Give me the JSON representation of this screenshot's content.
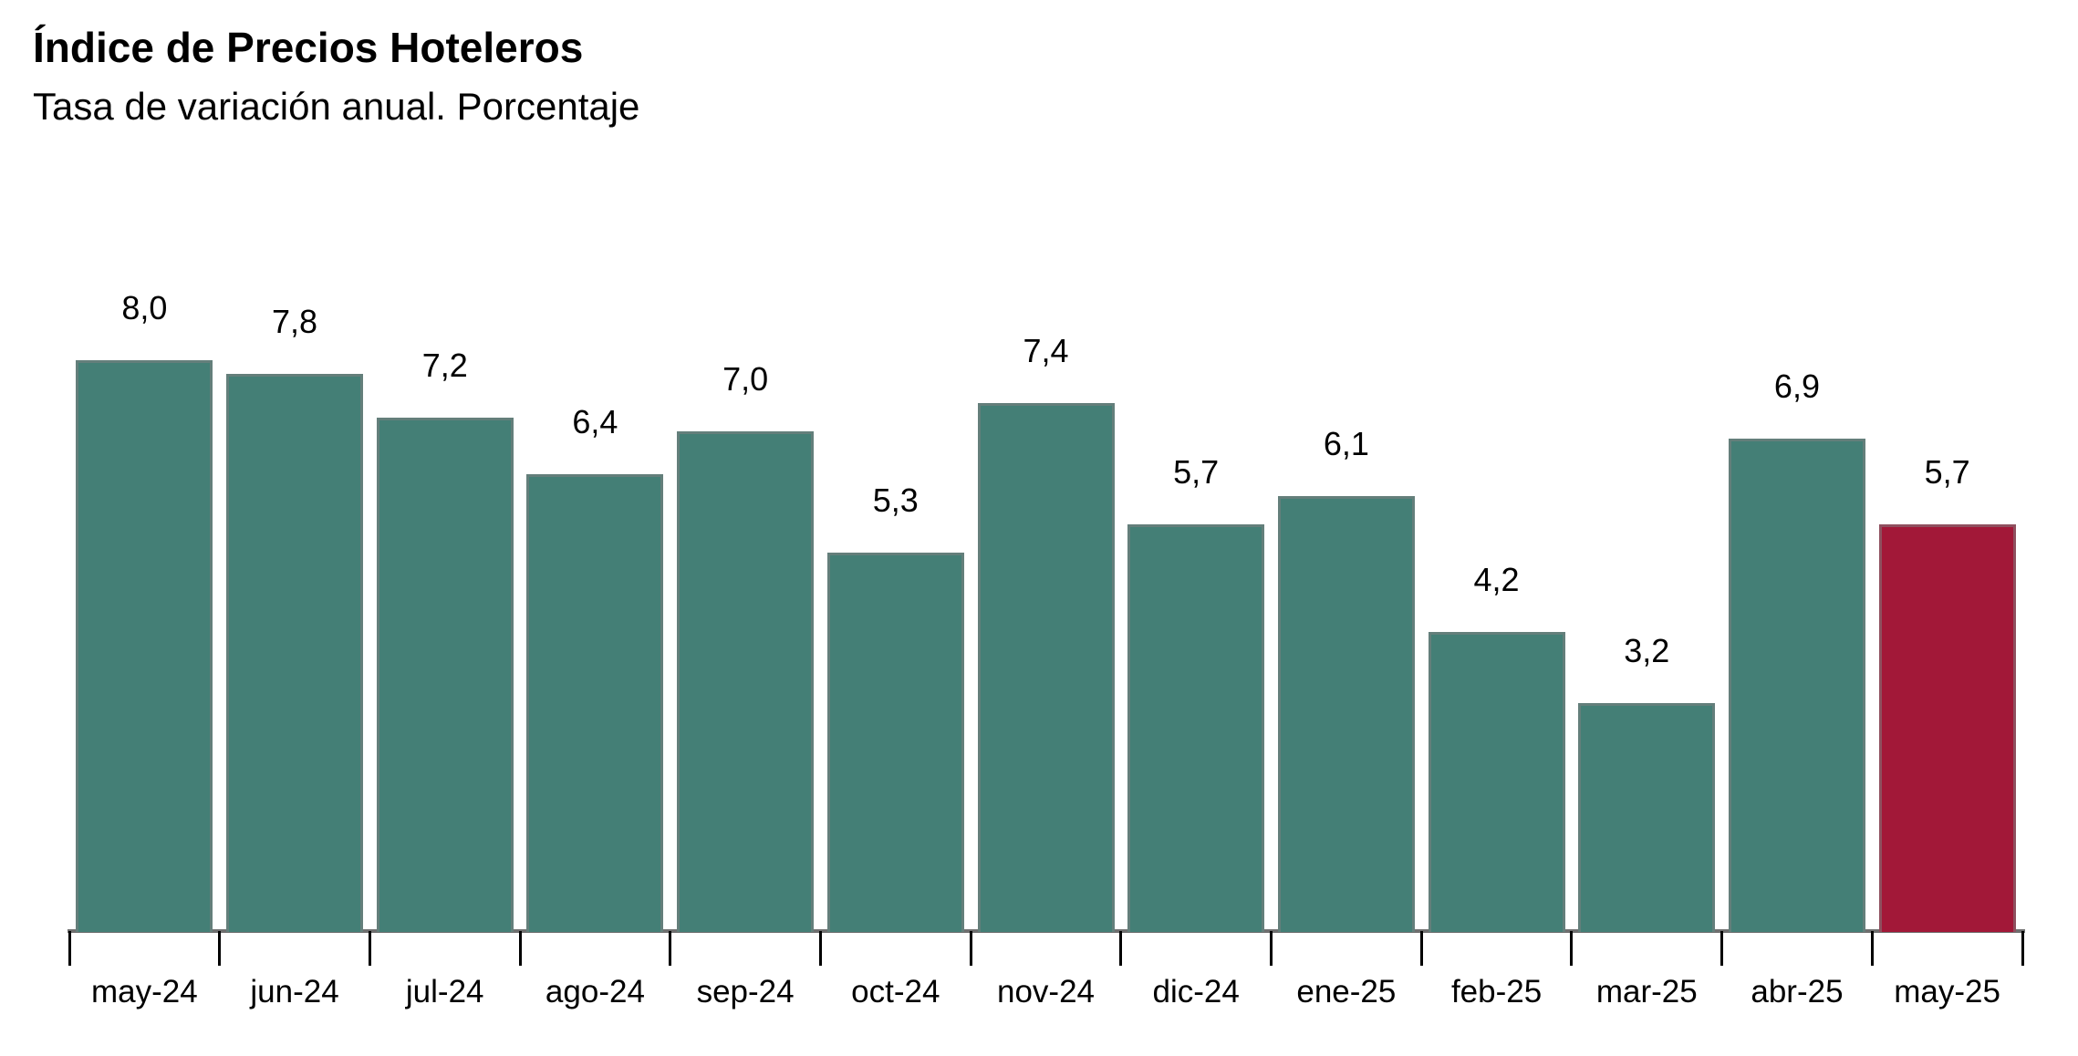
{
  "chart_data": {
    "type": "bar",
    "title": "Índice de Precios Hoteleros",
    "subtitle": "Tasa de variación anual. Porcentaje",
    "categories": [
      "may-24",
      "jun-24",
      "jul-24",
      "ago-24",
      "sep-24",
      "oct-24",
      "nov-24",
      "dic-24",
      "ene-25",
      "feb-25",
      "mar-25",
      "abr-25",
      "may-25"
    ],
    "values": [
      8.0,
      7.8,
      7.2,
      6.4,
      7.0,
      5.3,
      7.4,
      5.7,
      6.1,
      4.2,
      3.2,
      6.9,
      5.7
    ],
    "value_labels": [
      "8,0",
      "7,8",
      "7,2",
      "6,4",
      "7,0",
      "5,3",
      "7,4",
      "5,7",
      "6,1",
      "4,2",
      "3,2",
      "6,9",
      "5,7"
    ],
    "xlabel": "",
    "ylabel": "",
    "ylim": [
      0,
      8.5
    ],
    "grid": false,
    "legend": "none",
    "decimal_separator": ",",
    "highlight_index": 12,
    "colors": {
      "bar": "#447f76",
      "highlight": "#a21838",
      "bar_border": "#9b9b9b",
      "axis_line": "#6f6f6f",
      "tick": "#000000",
      "text": "#000000",
      "background": "#ffffff"
    }
  }
}
